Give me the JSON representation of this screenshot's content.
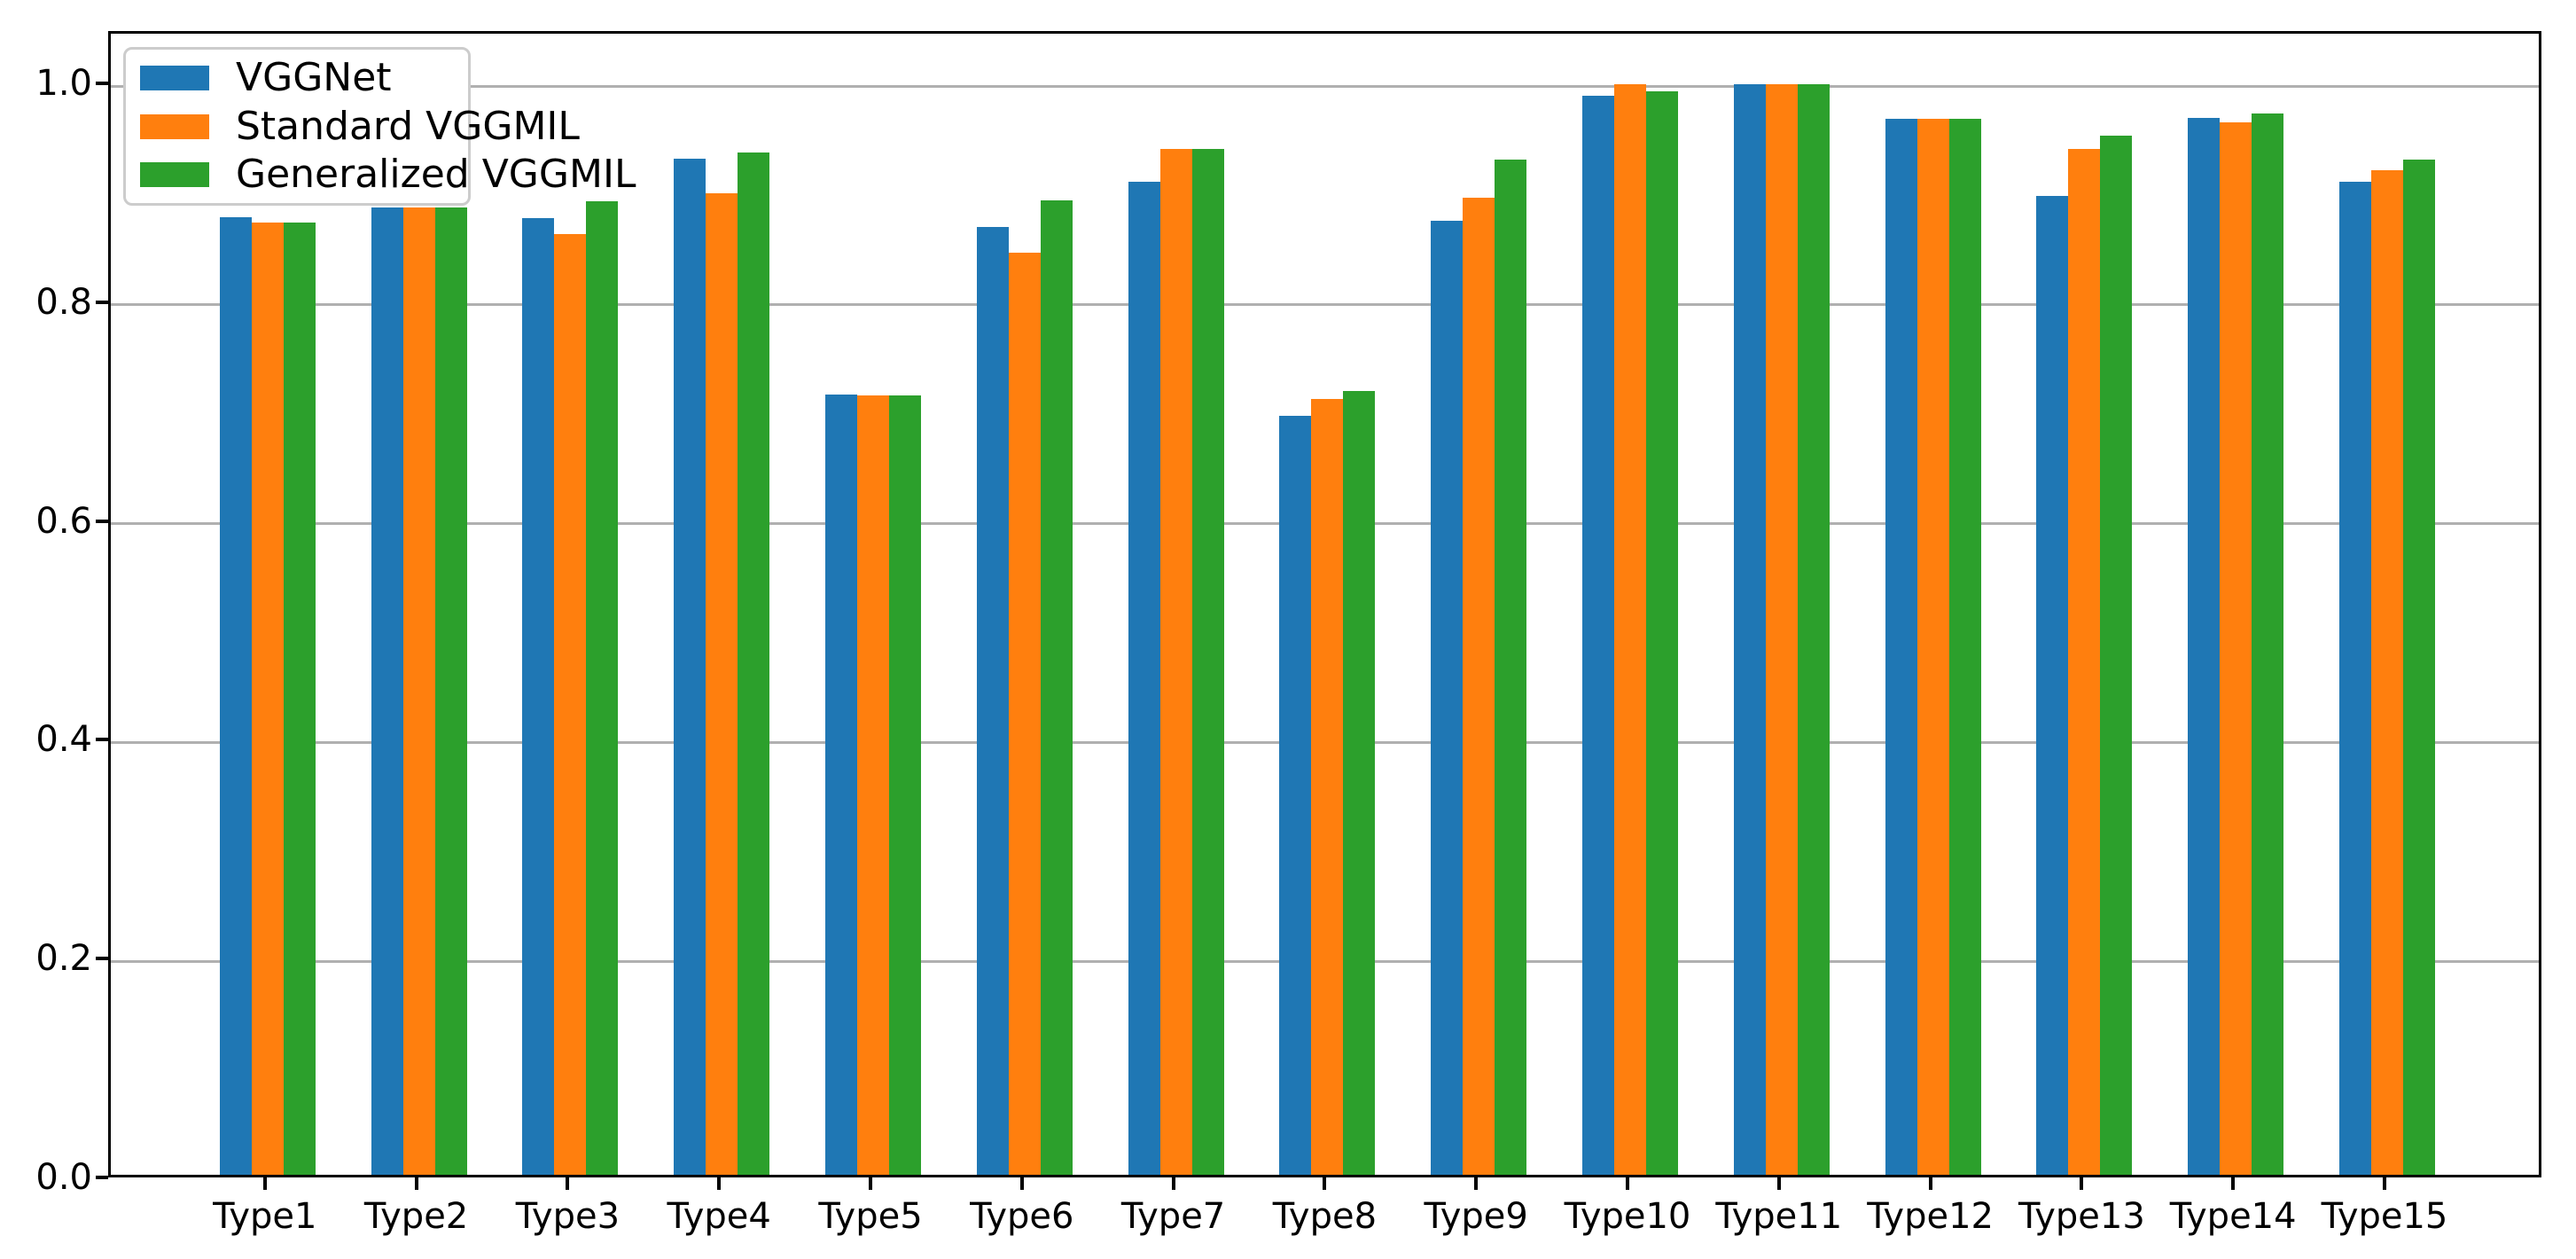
{
  "chart_data": {
    "type": "bar",
    "title": "",
    "xlabel": "",
    "ylabel": "",
    "categories": [
      "Type1",
      "Type2",
      "Type3",
      "Type4",
      "Type5",
      "Type6",
      "Type7",
      "Type8",
      "Type9",
      "Type10",
      "Type11",
      "Type12",
      "Type13",
      "Type14",
      "Type15"
    ],
    "series": [
      {
        "name": "VGGNet",
        "color": "#1f77b4",
        "values": [
          0.875,
          0.884,
          0.874,
          0.929,
          0.713,
          0.866,
          0.908,
          0.694,
          0.872,
          0.986,
          0.997,
          0.965,
          0.895,
          0.966,
          0.908
        ]
      },
      {
        "name": "Standard VGGMIL",
        "color": "#ff7f0e",
        "values": [
          0.87,
          0.884,
          0.86,
          0.897,
          0.712,
          0.843,
          0.938,
          0.709,
          0.893,
          0.997,
          0.997,
          0.965,
          0.938,
          0.962,
          0.918
        ]
      },
      {
        "name": "Generalized VGGMIL",
        "color": "#2ca02c",
        "values": [
          0.87,
          0.884,
          0.89,
          0.934,
          0.712,
          0.891,
          0.938,
          0.716,
          0.928,
          0.99,
          0.997,
          0.965,
          0.95,
          0.97,
          0.928
        ]
      }
    ],
    "ylim": [
      0.0,
      1.0
    ],
    "yticks": {
      "values": [
        0.0,
        0.2,
        0.4,
        0.6,
        0.8,
        1.0
      ],
      "labels": [
        "0.0",
        "0.2",
        "0.4",
        "0.6",
        "0.8",
        "1.0"
      ]
    },
    "grid": "horizontal",
    "legend_position": "upper-left",
    "colors": {
      "gridline": "#b0b0b0",
      "spine": "#000000",
      "background": "#ffffff",
      "legend_border": "#cccccc"
    }
  }
}
